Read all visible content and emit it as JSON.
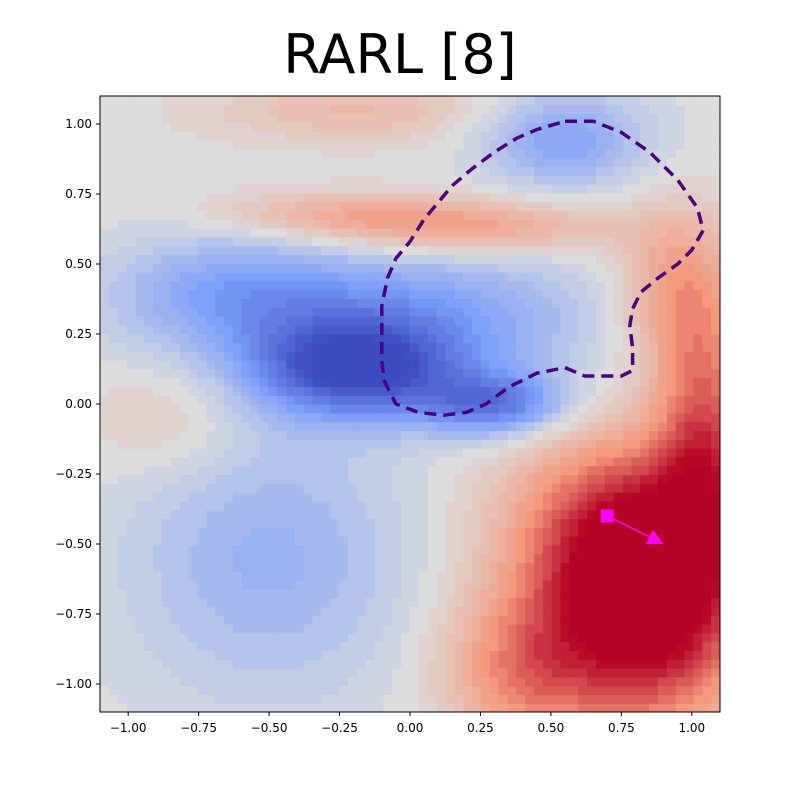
{
  "chart_data": {
    "type": "heatmap",
    "title": "RARL [8]",
    "xlabel": "",
    "ylabel": "",
    "xlim": [
      -1.1,
      1.1
    ],
    "ylim": [
      -1.1,
      1.1
    ],
    "xticks": [
      "−1.00",
      "−0.75",
      "−0.50",
      "−0.25",
      "0.00",
      "0.25",
      "0.50",
      "0.75",
      "1.00"
    ],
    "xtick_values": [
      -1.0,
      -0.75,
      -0.5,
      -0.25,
      0.0,
      0.25,
      0.5,
      0.75,
      1.0
    ],
    "yticks": [
      "1.00",
      "0.75",
      "0.50",
      "0.25",
      "0.00",
      "−0.25",
      "−0.50",
      "−0.75",
      "−1.00"
    ],
    "ytick_values": [
      1.0,
      0.75,
      0.5,
      0.25,
      0.0,
      -0.25,
      -0.5,
      -0.75,
      -1.0
    ],
    "colormap": "coolwarm",
    "field_blobs": [
      {
        "x": -0.2,
        "y": 0.12,
        "amp": -1.0,
        "sx": 0.25,
        "sy": 0.12
      },
      {
        "x": 0.3,
        "y": 0.0,
        "amp": -0.8,
        "sx": 0.18,
        "sy": 0.08
      },
      {
        "x": 0.0,
        "y": 0.3,
        "amp": -0.6,
        "sx": 0.45,
        "sy": 0.18
      },
      {
        "x": -0.65,
        "y": 0.4,
        "amp": -0.45,
        "sx": 0.3,
        "sy": 0.15
      },
      {
        "x": 0.55,
        "y": 0.95,
        "amp": -0.55,
        "sx": 0.2,
        "sy": 0.12
      },
      {
        "x": -0.5,
        "y": -0.55,
        "amp": -0.4,
        "sx": 0.35,
        "sy": 0.35
      },
      {
        "x": 0.85,
        "y": -0.75,
        "amp": 1.2,
        "sx": 0.25,
        "sy": 0.3
      },
      {
        "x": 0.75,
        "y": -0.45,
        "amp": 0.8,
        "sx": 0.3,
        "sy": 0.25
      },
      {
        "x": 1.05,
        "y": -0.1,
        "amp": 0.75,
        "sx": 0.12,
        "sy": 0.3
      },
      {
        "x": 0.95,
        "y": 0.4,
        "amp": 0.55,
        "sx": 0.15,
        "sy": 0.2
      },
      {
        "x": 0.2,
        "y": 0.63,
        "amp": 0.55,
        "sx": 0.35,
        "sy": 0.07
      },
      {
        "x": -0.3,
        "y": 0.68,
        "amp": 0.35,
        "sx": 0.3,
        "sy": 0.06
      },
      {
        "x": -0.2,
        "y": 1.05,
        "amp": 0.3,
        "sx": 0.35,
        "sy": 0.08
      },
      {
        "x": -0.85,
        "y": -0.05,
        "amp": 0.2,
        "sx": 0.2,
        "sy": 0.15
      },
      {
        "x": 0.4,
        "y": -0.95,
        "amp": 0.6,
        "sx": 0.2,
        "sy": 0.2
      }
    ],
    "contour": {
      "color": "#4b0082",
      "style": "dashed",
      "points": [
        [
          0.55,
          1.01
        ],
        [
          0.65,
          1.01
        ],
        [
          0.75,
          0.97
        ],
        [
          0.85,
          0.9
        ],
        [
          0.95,
          0.8
        ],
        [
          1.02,
          0.7
        ],
        [
          1.04,
          0.62
        ],
        [
          1.0,
          0.55
        ],
        [
          0.95,
          0.5
        ],
        [
          0.88,
          0.45
        ],
        [
          0.82,
          0.4
        ],
        [
          0.79,
          0.34
        ],
        [
          0.78,
          0.28
        ],
        [
          0.79,
          0.2
        ],
        [
          0.79,
          0.12
        ],
        [
          0.75,
          0.1
        ],
        [
          0.62,
          0.1
        ],
        [
          0.55,
          0.13
        ],
        [
          0.45,
          0.11
        ],
        [
          0.35,
          0.06
        ],
        [
          0.27,
          0.0
        ],
        [
          0.2,
          -0.03
        ],
        [
          0.12,
          -0.04
        ],
        [
          0.03,
          -0.03
        ],
        [
          -0.05,
          0.0
        ],
        [
          -0.09,
          0.08
        ],
        [
          -0.1,
          0.15
        ],
        [
          -0.1,
          0.25
        ],
        [
          -0.1,
          0.35
        ],
        [
          -0.08,
          0.45
        ],
        [
          -0.05,
          0.52
        ],
        [
          0.0,
          0.58
        ],
        [
          0.05,
          0.66
        ],
        [
          0.1,
          0.72
        ],
        [
          0.15,
          0.78
        ],
        [
          0.22,
          0.84
        ],
        [
          0.3,
          0.9
        ],
        [
          0.38,
          0.95
        ],
        [
          0.45,
          0.98
        ],
        [
          0.55,
          1.01
        ]
      ]
    },
    "start_marker": {
      "x": 0.7,
      "y": -0.4,
      "shape": "square",
      "color": "#ff00ff"
    },
    "arrow": {
      "from": [
        0.7,
        -0.4
      ],
      "to": [
        0.9,
        -0.5
      ],
      "color": "#ff00ff"
    }
  }
}
